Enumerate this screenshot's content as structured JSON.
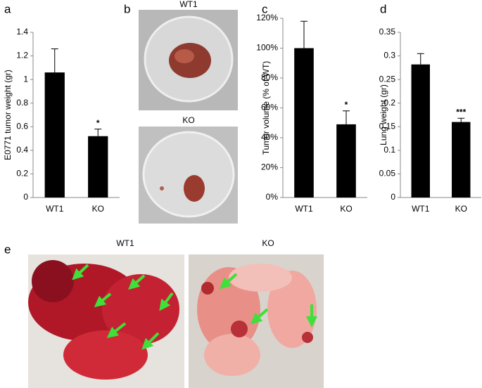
{
  "panel_labels": {
    "a": "a",
    "b": "b",
    "c": "c",
    "d": "d",
    "e": "e"
  },
  "photos": {
    "b_top": "WT1",
    "b_bottom": "KO",
    "e_left": "WT1",
    "e_right": "KO"
  },
  "chart_data": [
    {
      "type": "bar",
      "ylabel": "E0771 tumor weight (gr)",
      "categories": [
        "WT1",
        "KO"
      ],
      "values": [
        1.06,
        0.52
      ],
      "errors": [
        0.2,
        0.06
      ],
      "annotations": [
        null,
        "*"
      ],
      "color": "#000000",
      "ylim": [
        0,
        1.4
      ],
      "yticks": [
        0,
        0.2,
        0.4,
        0.6,
        0.8,
        1,
        1.2,
        1.4
      ]
    },
    {
      "type": "bar",
      "ylabel": "Tumor volume (% of WT)",
      "categories": [
        "WT1",
        "KO"
      ],
      "values": [
        100,
        49
      ],
      "errors": [
        18,
        9
      ],
      "annotations": [
        null,
        "*"
      ],
      "color": "#000000",
      "ylim": [
        0,
        120
      ],
      "yticks": [
        {
          "value": 0,
          "label": "0%"
        },
        {
          "value": 20,
          "label": "20%"
        },
        {
          "value": 40,
          "label": "40%"
        },
        {
          "value": 60,
          "label": "60%"
        },
        {
          "value": 80,
          "label": "80%"
        },
        {
          "value": 100,
          "label": "100%"
        },
        {
          "value": 120,
          "label": "120%"
        }
      ]
    },
    {
      "type": "bar",
      "ylabel": "Lung weight (gr)",
      "categories": [
        "WT1",
        "KO"
      ],
      "values": [
        0.282,
        0.16
      ],
      "errors": [
        0.023,
        0.008
      ],
      "annotations": [
        null,
        "***"
      ],
      "color": "#000000",
      "ylim": [
        0,
        0.35
      ],
      "yticks": [
        0,
        0.05,
        0.1,
        0.15,
        0.2,
        0.25,
        0.3,
        0.35
      ]
    }
  ]
}
